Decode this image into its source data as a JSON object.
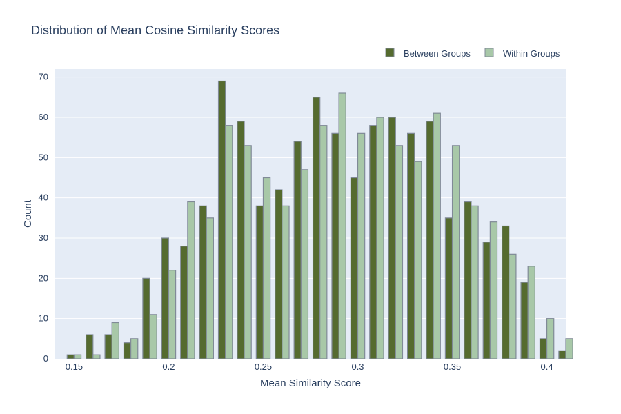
{
  "chart_data": {
    "type": "bar",
    "title": "Distribution of Mean Cosine Similarity Scores",
    "xlabel": "Mean Similarity Score",
    "ylabel": "Count",
    "x": [
      0.15,
      0.16,
      0.17,
      0.18,
      0.19,
      0.2,
      0.21,
      0.22,
      0.23,
      0.24,
      0.25,
      0.26,
      0.27,
      0.28,
      0.29,
      0.3,
      0.31,
      0.32,
      0.33,
      0.34,
      0.35,
      0.36,
      0.37,
      0.38,
      0.39,
      0.4,
      0.41
    ],
    "series": [
      {
        "name": "Between Groups",
        "values": [
          1,
          6,
          6,
          4,
          20,
          30,
          28,
          38,
          69,
          59,
          38,
          42,
          54,
          65,
          56,
          45,
          58,
          60,
          56,
          59,
          35,
          39,
          29,
          33,
          19,
          5,
          2
        ]
      },
      {
        "name": "Within Groups",
        "values": [
          1,
          1,
          9,
          5,
          11,
          22,
          39,
          35,
          58,
          53,
          45,
          38,
          47,
          58,
          66,
          56,
          60,
          53,
          49,
          61,
          53,
          38,
          34,
          26,
          23,
          10,
          5
        ]
      }
    ],
    "xlim": [
      0.14,
      0.41
    ],
    "ylim": [
      0,
      72
    ],
    "x_ticks": [
      0.15,
      0.2,
      0.25,
      0.3,
      0.35,
      0.4
    ],
    "x_tick_labels": [
      "0.15",
      "0.2",
      "0.25",
      "0.3",
      "0.35",
      "0.4"
    ],
    "y_ticks": [
      0,
      10,
      20,
      30,
      40,
      50,
      60,
      70
    ],
    "y_tick_labels": [
      "0",
      "10",
      "20",
      "30",
      "40",
      "50",
      "60",
      "70"
    ],
    "legend_position": "top-right",
    "grid": true,
    "colors": {
      "between": "#556b2f",
      "within": "#a8c8a8",
      "bar_outline": "#808a97",
      "plot_bg": "#e5ecf6",
      "grid": "#ffffff",
      "text": "#2a3f5f"
    }
  }
}
